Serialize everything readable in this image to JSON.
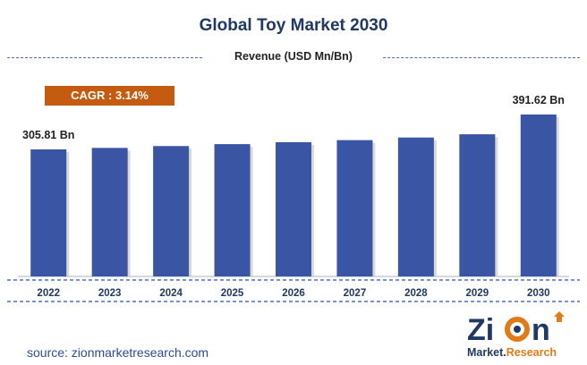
{
  "header": {
    "title": "Global Toy Market 2030",
    "subtitle": "Revenue (USD Mn/Bn)"
  },
  "badge": {
    "cagr_label": "CAGR : 3.14%"
  },
  "footer": {
    "source": "source: zionmarketresearch.com"
  },
  "logo": {
    "brand_top": "Zion",
    "brand_bottom": "Market.Research"
  },
  "colors": {
    "bar": "#3955a3",
    "accent": "#c55a11",
    "title": "#1f3864"
  },
  "chart_data": {
    "type": "bar",
    "title": "Global Toy Market 2030",
    "categories": [
      "2022",
      "2023",
      "2024",
      "2025",
      "2026",
      "2027",
      "2028",
      "2029",
      "2030"
    ],
    "values": [
      305.81,
      309.5,
      314.0,
      318.8,
      323.5,
      328.6,
      335.0,
      343.0,
      391.62
    ],
    "data_labels": [
      {
        "index": 0,
        "text": "305.81 Bn"
      },
      {
        "index": 8,
        "text": "391.62 Bn"
      }
    ]
  }
}
